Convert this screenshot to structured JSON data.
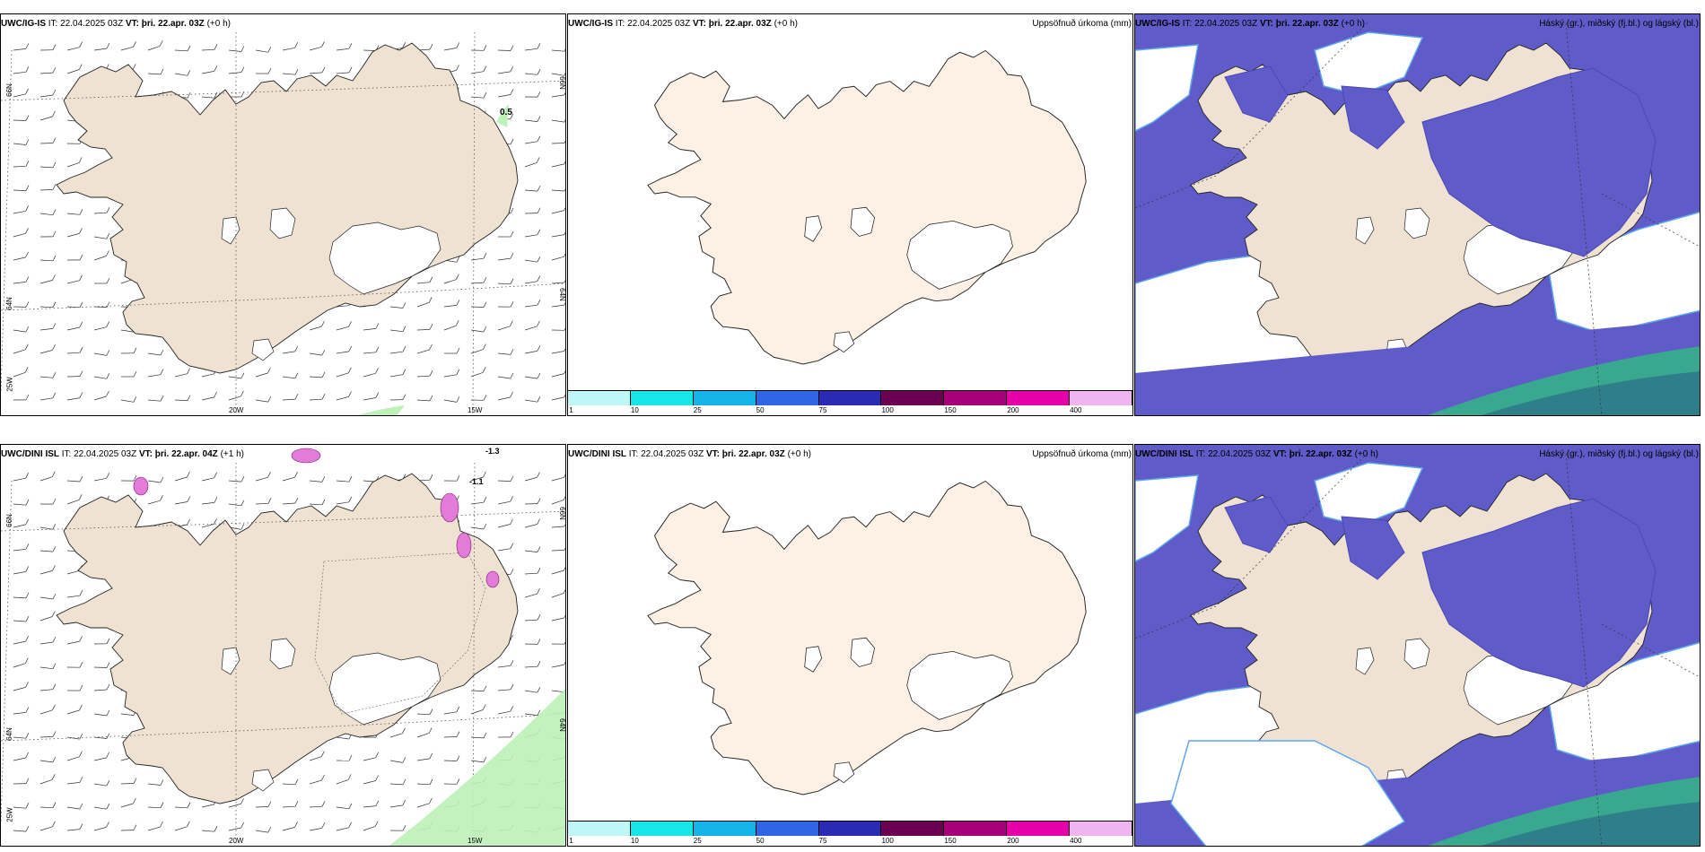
{
  "colors": {
    "land": "#efe2d2",
    "land_light": "#fcf1e4",
    "ice": "#ffffff",
    "cloud": "#5f5bc8",
    "cloud_dark": "#4c46b5",
    "sea_green": "#3aa78f",
    "precip_pink": "#e27cd8",
    "wind_green": "#bdf1b8"
  },
  "panels": [
    {
      "id": "r1c1",
      "model": "UWC/IG-IS",
      "it": "IT: 22.04.2025 03Z",
      "vt_lbl": "VT:",
      "vt": "þri. 22.apr. 03Z",
      "lead": "(+0 h)",
      "right": "",
      "type": "wind",
      "annotations": [
        "0.5"
      ]
    },
    {
      "id": "r1c2",
      "model": "UWC/IG-IS",
      "it": "IT: 22.04.2025 03Z",
      "vt_lbl": "VT:",
      "vt": "þri. 22.apr. 03Z",
      "lead": "(+0 h)",
      "right": "Uppsöfnuð úrkoma (mm)",
      "type": "precip"
    },
    {
      "id": "r1c3",
      "model": "UWC/IG-IS",
      "it": "IT: 22.04.2025 03Z",
      "vt_lbl": "VT:",
      "vt": "þri. 22.apr. 03Z",
      "lead": "(+0 h)",
      "right": "Háský (gr.), miðský (fj.bl.) og lágský (bl.)",
      "type": "cloud"
    },
    {
      "id": "r2c1",
      "model": "UWC/DINI ISL",
      "it": "IT: 22.04.2025 03Z",
      "vt_lbl": "VT:",
      "vt": "þri. 22.apr. 04Z",
      "lead": "(+1 h)",
      "right": "",
      "type": "wind",
      "annotations": [
        "-1.1",
        "-1.3"
      ]
    },
    {
      "id": "r2c2",
      "model": "UWC/DINI ISL",
      "it": "IT: 22.04.2025 03Z",
      "vt_lbl": "VT:",
      "vt": "þri. 22.apr. 03Z",
      "lead": "(+0 h)",
      "right": "Uppsöfnuð úrkoma (mm)",
      "type": "precip"
    },
    {
      "id": "r2c3",
      "model": "UWC/DINI ISL",
      "it": "IT: 22.04.2025 03Z",
      "vt_lbl": "VT:",
      "vt": "þri. 22.apr. 03Z",
      "lead": "(+0 h)",
      "right": "Háský (gr.), miðský (fj.bl.) og lágský (bl.)",
      "type": "cloud"
    }
  ],
  "grid_labels": {
    "lat66": "66N",
    "lat64": "64N",
    "lon25": "25W",
    "lon20": "20W",
    "lon15": "15W"
  },
  "colorbar": {
    "colors": [
      "#bff7f7",
      "#16e6e6",
      "#16b4e6",
      "#2f66e6",
      "#2a2ab4",
      "#6c0050",
      "#a6007a",
      "#e600aa",
      "#f0b4f0"
    ],
    "ticks": [
      "1",
      "10",
      "25",
      "50",
      "75",
      "100",
      "150",
      "200",
      "400"
    ]
  }
}
